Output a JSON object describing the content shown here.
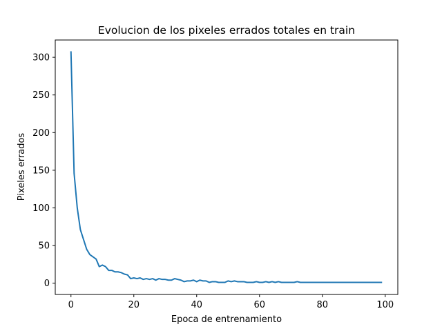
{
  "chart_data": {
    "type": "line",
    "title": "Evolucion de los pixeles errados totales en train",
    "xlabel": "Epoca de entrenamiento",
    "ylabel": "Pixeles errados",
    "xlim": [
      -5,
      104
    ],
    "ylim": [
      -15,
      323
    ],
    "grid": false,
    "xticks": [
      0,
      20,
      40,
      60,
      80,
      100
    ],
    "yticks": [
      0,
      50,
      100,
      150,
      200,
      250,
      300
    ],
    "xtick_labels": [
      "0",
      "20",
      "40",
      "60",
      "80",
      "100"
    ],
    "ytick_labels": [
      "0",
      "50",
      "100",
      "150",
      "200",
      "250",
      "300"
    ],
    "series": [
      {
        "color": "#1f77b4",
        "x": [
          0,
          1,
          2,
          3,
          4,
          5,
          6,
          7,
          8,
          9,
          10,
          11,
          12,
          13,
          14,
          15,
          16,
          17,
          18,
          19,
          20,
          21,
          22,
          23,
          24,
          25,
          26,
          27,
          28,
          29,
          30,
          31,
          32,
          33,
          34,
          35,
          36,
          37,
          38,
          39,
          40,
          41,
          42,
          43,
          44,
          45,
          46,
          47,
          48,
          49,
          50,
          51,
          52,
          53,
          54,
          55,
          56,
          57,
          58,
          59,
          60,
          61,
          62,
          63,
          64,
          65,
          66,
          67,
          68,
          69,
          70,
          71,
          72,
          73,
          74,
          75,
          76,
          77,
          78,
          79,
          80,
          81,
          82,
          83,
          84,
          85,
          86,
          87,
          88,
          89,
          90,
          91,
          92,
          93,
          94,
          95,
          96,
          97,
          98,
          99
        ],
        "values": [
          308,
          146,
          100,
          71,
          58,
          45,
          38,
          35,
          32,
          22,
          24,
          22,
          17,
          17,
          15,
          15,
          14,
          12,
          11,
          6,
          7,
          6,
          7,
          5,
          6,
          5,
          6,
          4,
          6,
          5,
          5,
          4,
          4,
          6,
          5,
          4,
          2,
          3,
          3,
          4,
          2,
          4,
          3,
          3,
          1,
          2,
          2,
          1,
          1,
          1,
          3,
          2,
          3,
          2,
          2,
          2,
          1,
          1,
          1,
          2,
          1,
          1,
          2,
          1,
          2,
          1,
          2,
          1,
          1,
          1,
          1,
          1,
          2,
          1,
          1,
          1,
          1,
          1,
          1,
          1,
          1,
          1,
          1,
          1,
          1,
          1,
          1,
          1,
          1,
          1,
          1,
          1,
          1,
          1,
          1,
          1,
          1,
          1,
          1,
          1
        ]
      }
    ]
  }
}
